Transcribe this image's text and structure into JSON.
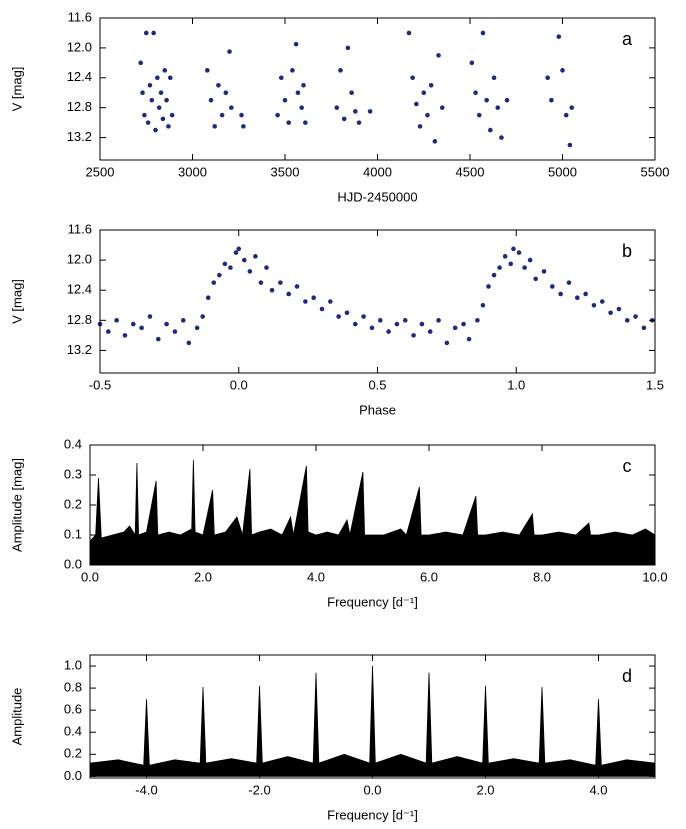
{
  "chart_data": [
    {
      "type": "scatter",
      "annotation": "a",
      "x_label": "HJD-2450000",
      "y_label": "V [mag]",
      "color": "#1f2a7a",
      "y_inverted": true,
      "xlim": [
        2500,
        5500
      ],
      "xticks": [
        2500,
        3000,
        3500,
        4000,
        4500,
        5000,
        5500
      ],
      "ylim": [
        11.6,
        13.5
      ],
      "yticks": [
        11.6,
        {
          "value": 12,
          "label": "12.0"
        },
        12.4,
        12.8,
        13.2
      ],
      "x": [
        2720,
        2730,
        2740,
        2750,
        2760,
        2770,
        2780,
        2790,
        2800,
        2810,
        2820,
        2830,
        2840,
        2850,
        2860,
        2870,
        2880,
        2890,
        3080,
        3100,
        3120,
        3140,
        3160,
        3180,
        3200,
        3210,
        3265,
        3275,
        3460,
        3480,
        3500,
        3520,
        3540,
        3560,
        3570,
        3590,
        3600,
        3610,
        3780,
        3800,
        3820,
        3840,
        3860,
        3880,
        3900,
        3960,
        4170,
        4190,
        4210,
        4230,
        4250,
        4270,
        4290,
        4310,
        4330,
        4350,
        4510,
        4530,
        4550,
        4570,
        4590,
        4610,
        4630,
        4650,
        4670,
        4700,
        4920,
        4940,
        4980,
        5000,
        5020,
        5040,
        5050
      ],
      "values": [
        12.2,
        12.6,
        12.9,
        11.8,
        13.0,
        12.5,
        12.7,
        11.8,
        13.1,
        12.4,
        12.8,
        12.6,
        12.95,
        12.3,
        12.7,
        13.05,
        12.4,
        12.9,
        12.3,
        12.7,
        13.05,
        12.5,
        12.9,
        12.6,
        12.05,
        12.8,
        12.9,
        13.05,
        12.9,
        12.4,
        12.7,
        13.0,
        12.3,
        11.95,
        12.6,
        12.8,
        12.5,
        13.0,
        12.8,
        12.3,
        12.95,
        12.0,
        12.6,
        12.85,
        13.0,
        12.85,
        11.8,
        12.4,
        12.75,
        13.05,
        12.6,
        12.9,
        12.5,
        13.25,
        12.1,
        12.8,
        12.2,
        12.6,
        12.9,
        11.8,
        12.7,
        13.1,
        12.4,
        12.8,
        13.2,
        12.7,
        12.4,
        12.7,
        11.85,
        12.3,
        12.9,
        13.3,
        12.8
      ]
    },
    {
      "type": "scatter",
      "annotation": "b",
      "x_label": "Phase",
      "y_label": "V [mag]",
      "color": "#1f2a7a",
      "y_inverted": true,
      "xlim": [
        -0.5,
        1.5
      ],
      "xticks": [
        -0.5,
        {
          "value": 0,
          "label": "0.0"
        },
        0.5,
        {
          "value": 1,
          "label": "1.0"
        },
        1.5
      ],
      "ylim": [
        11.6,
        13.5
      ],
      "yticks": [
        11.6,
        {
          "value": 12,
          "label": "12.0"
        },
        12.4,
        12.8,
        13.2
      ],
      "x": [
        -0.5,
        -0.47,
        -0.44,
        -0.41,
        -0.38,
        -0.35,
        -0.32,
        -0.29,
        -0.26,
        -0.23,
        -0.2,
        -0.18,
        -0.15,
        -0.13,
        -0.11,
        -0.09,
        -0.07,
        -0.05,
        -0.03,
        -0.01,
        0.0,
        0.02,
        0.04,
        0.06,
        0.08,
        0.1,
        0.12,
        0.15,
        0.18,
        0.21,
        0.24,
        0.27,
        0.3,
        0.33,
        0.36,
        0.39,
        0.42,
        0.45,
        0.48,
        0.51,
        0.54,
        0.57,
        0.6,
        0.63,
        0.66,
        0.69,
        0.72,
        0.75,
        0.78,
        0.81,
        0.83,
        0.86,
        0.88,
        0.9,
        0.92,
        0.94,
        0.96,
        0.98,
        0.99,
        1.01,
        1.03,
        1.05,
        1.07,
        1.1,
        1.13,
        1.16,
        1.19,
        1.22,
        1.25,
        1.28,
        1.31,
        1.34,
        1.37,
        1.4,
        1.43,
        1.46,
        1.49
      ],
      "values": [
        12.85,
        12.95,
        12.8,
        13.0,
        12.85,
        12.9,
        12.75,
        13.05,
        12.85,
        12.95,
        12.8,
        13.1,
        12.9,
        12.75,
        12.5,
        12.3,
        12.2,
        12.05,
        12.1,
        11.9,
        11.85,
        12.0,
        12.15,
        11.95,
        12.3,
        12.1,
        12.4,
        12.3,
        12.45,
        12.35,
        12.55,
        12.5,
        12.65,
        12.55,
        12.75,
        12.7,
        12.85,
        12.75,
        12.9,
        12.8,
        12.95,
        12.85,
        12.8,
        13.0,
        12.85,
        12.95,
        12.8,
        13.1,
        12.9,
        12.85,
        13.05,
        12.8,
        12.6,
        12.35,
        12.2,
        12.1,
        11.95,
        12.05,
        11.85,
        11.9,
        12.1,
        12.0,
        12.25,
        12.15,
        12.35,
        12.45,
        12.3,
        12.5,
        12.45,
        12.6,
        12.55,
        12.7,
        12.65,
        12.8,
        12.75,
        12.9,
        12.8
      ]
    },
    {
      "type": "area",
      "annotation": "c",
      "x_label": "Frequency [d⁻¹]",
      "y_label": "Amplitude [mag]",
      "color": "#000000",
      "y_inverted": false,
      "xlim": [
        0,
        10
      ],
      "xticks": [
        {
          "value": 0,
          "label": "0.0"
        },
        {
          "value": 2,
          "label": "2.0"
        },
        {
          "value": 4,
          "label": "4.0"
        },
        {
          "value": 6,
          "label": "6.0"
        },
        {
          "value": 8,
          "label": "8.0"
        },
        {
          "value": 10,
          "label": "10.0"
        }
      ],
      "ylim": [
        0,
        0.4
      ],
      "yticks": [
        {
          "value": 0,
          "label": "0.0"
        },
        0.1,
        0.2,
        0.3,
        0.4
      ],
      "x": [
        0.0,
        0.1,
        0.15,
        0.2,
        0.4,
        0.6,
        0.7,
        0.8,
        0.83,
        0.86,
        1.0,
        1.17,
        1.2,
        1.4,
        1.6,
        1.8,
        1.83,
        1.86,
        2.0,
        2.17,
        2.2,
        2.4,
        2.6,
        2.7,
        2.83,
        2.86,
        3.0,
        3.2,
        3.4,
        3.55,
        3.6,
        3.83,
        3.86,
        4.0,
        4.2,
        4.4,
        4.55,
        4.6,
        4.83,
        4.86,
        5.0,
        5.2,
        5.5,
        5.6,
        5.83,
        5.86,
        6.0,
        6.3,
        6.6,
        6.83,
        6.86,
        7.0,
        7.3,
        7.6,
        7.83,
        7.86,
        8.0,
        8.3,
        8.6,
        8.83,
        8.86,
        9.0,
        9.3,
        9.6,
        9.83,
        10.0
      ],
      "values": [
        0.08,
        0.1,
        0.29,
        0.09,
        0.1,
        0.11,
        0.13,
        0.1,
        0.34,
        0.1,
        0.11,
        0.28,
        0.1,
        0.11,
        0.1,
        0.12,
        0.35,
        0.11,
        0.1,
        0.25,
        0.1,
        0.11,
        0.16,
        0.1,
        0.32,
        0.1,
        0.11,
        0.12,
        0.1,
        0.16,
        0.1,
        0.33,
        0.11,
        0.1,
        0.11,
        0.1,
        0.15,
        0.1,
        0.31,
        0.1,
        0.1,
        0.1,
        0.12,
        0.1,
        0.26,
        0.1,
        0.1,
        0.11,
        0.1,
        0.23,
        0.1,
        0.1,
        0.11,
        0.1,
        0.17,
        0.1,
        0.1,
        0.11,
        0.1,
        0.14,
        0.1,
        0.1,
        0.11,
        0.1,
        0.12,
        0.1
      ]
    },
    {
      "type": "area",
      "annotation": "d",
      "x_label": "Frequency [d⁻¹]",
      "y_label": "Amplitude",
      "color": "#000000",
      "y_inverted": false,
      "xlim": [
        -5,
        5
      ],
      "xticks": [
        {
          "value": -4,
          "label": "-4.0"
        },
        {
          "value": -2,
          "label": "-2.0"
        },
        {
          "value": 0,
          "label": "0.0"
        },
        {
          "value": 2,
          "label": "2.0"
        },
        {
          "value": 4,
          "label": "4.0"
        }
      ],
      "ylim": [
        -0.015,
        1.1
      ],
      "yticks": [
        {
          "value": 0,
          "label": "0.0"
        },
        0.2,
        0.4,
        0.6,
        0.8,
        {
          "value": 1,
          "label": "1.0"
        }
      ],
      "x": [
        -5,
        -4.5,
        -4.05,
        -4,
        -3.95,
        -3.5,
        -3.05,
        -3,
        -2.95,
        -2.5,
        -2.05,
        -2,
        -1.95,
        -1.5,
        -1.05,
        -1,
        -0.95,
        -0.5,
        -0.05,
        0,
        0.05,
        0.5,
        0.95,
        1,
        1.05,
        1.5,
        1.95,
        2,
        2.05,
        2.5,
        2.95,
        3,
        3.05,
        3.5,
        3.95,
        4,
        4.05,
        4.5,
        5
      ],
      "values": [
        0.12,
        0.15,
        0.1,
        0.7,
        0.1,
        0.15,
        0.12,
        0.81,
        0.12,
        0.16,
        0.12,
        0.82,
        0.12,
        0.18,
        0.12,
        0.94,
        0.12,
        0.2,
        0.12,
        1.0,
        0.12,
        0.2,
        0.12,
        0.94,
        0.12,
        0.18,
        0.12,
        0.82,
        0.12,
        0.16,
        0.12,
        0.81,
        0.12,
        0.15,
        0.1,
        0.7,
        0.1,
        0.15,
        0.12
      ]
    }
  ]
}
